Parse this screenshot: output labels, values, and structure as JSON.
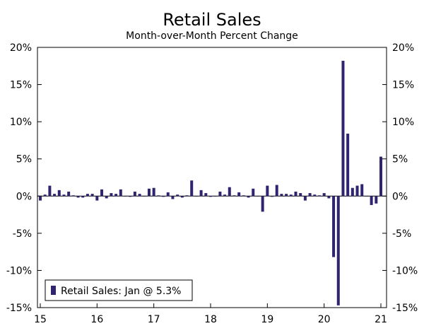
{
  "chart_data": {
    "type": "bar",
    "title": "Retail Sales",
    "subtitle": "Month-over-Month Percent Change",
    "xlabel": "",
    "ylabel": "",
    "ylim": [
      -15,
      20
    ],
    "y_ticks": [
      -15,
      -10,
      -5,
      0,
      5,
      10,
      15,
      20
    ],
    "y_tick_labels": [
      "-15%",
      "-10%",
      "-5%",
      "0%",
      "5%",
      "10%",
      "15%",
      "20%"
    ],
    "x_tick_labels": [
      "15",
      "16",
      "17",
      "18",
      "19",
      "20",
      "21"
    ],
    "grid": false,
    "legend_placement": "bottom-left",
    "bar_color": "#2E2470",
    "categories": [
      "2015-01",
      "2015-02",
      "2015-03",
      "2015-04",
      "2015-05",
      "2015-06",
      "2015-07",
      "2015-08",
      "2015-09",
      "2015-10",
      "2015-11",
      "2015-12",
      "2016-01",
      "2016-02",
      "2016-03",
      "2016-04",
      "2016-05",
      "2016-06",
      "2016-07",
      "2016-08",
      "2016-09",
      "2016-10",
      "2016-11",
      "2016-12",
      "2017-01",
      "2017-02",
      "2017-03",
      "2017-04",
      "2017-05",
      "2017-06",
      "2017-07",
      "2017-08",
      "2017-09",
      "2017-10",
      "2017-11",
      "2017-12",
      "2018-01",
      "2018-02",
      "2018-03",
      "2018-04",
      "2018-05",
      "2018-06",
      "2018-07",
      "2018-08",
      "2018-09",
      "2018-10",
      "2018-11",
      "2018-12",
      "2019-01",
      "2019-02",
      "2019-03",
      "2019-04",
      "2019-05",
      "2019-06",
      "2019-07",
      "2019-08",
      "2019-09",
      "2019-10",
      "2019-11",
      "2019-12",
      "2020-01",
      "2020-02",
      "2020-03",
      "2020-04",
      "2020-05",
      "2020-06",
      "2020-07",
      "2020-08",
      "2020-09",
      "2020-10",
      "2020-11",
      "2020-12",
      "2021-01"
    ],
    "series": [
      {
        "name": "Retail Sales: Jan @ 5.3%",
        "values": [
          -0.6,
          0.2,
          1.4,
          0.3,
          0.8,
          0.2,
          0.6,
          0.1,
          -0.2,
          -0.2,
          0.3,
          0.3,
          -0.6,
          0.9,
          -0.3,
          0.4,
          0.3,
          0.9,
          0.0,
          -0.1,
          0.6,
          0.3,
          0.0,
          1.0,
          1.1,
          0.1,
          -0.1,
          0.5,
          -0.4,
          0.2,
          -0.2,
          0.1,
          2.1,
          0.0,
          0.8,
          0.4,
          -0.1,
          0.0,
          0.6,
          0.2,
          1.2,
          0.1,
          0.5,
          0.1,
          -0.2,
          1.0,
          0.0,
          -2.1,
          1.4,
          -0.1,
          1.5,
          0.3,
          0.3,
          0.2,
          0.6,
          0.4,
          -0.6,
          0.4,
          0.2,
          0.1,
          0.4,
          -0.3,
          -8.2,
          -14.7,
          18.2,
          8.4,
          1.1,
          1.4,
          1.6,
          0.0,
          -1.2,
          -1.0,
          5.3
        ]
      }
    ]
  }
}
